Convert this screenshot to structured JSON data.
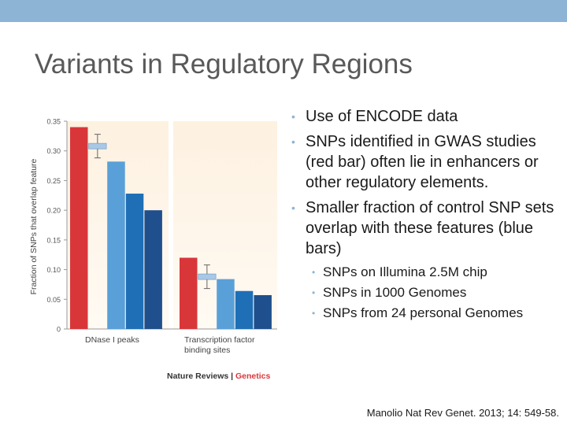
{
  "slide": {
    "title": "Variants in Regulatory Regions",
    "citation": "Manolio Nat Rev Genet. 2013; 14: 549-58."
  },
  "bullets": [
    "Use of ENCODE data",
    "SNPs identified in GWAS studies (red bar) often lie in enhancers or other regulatory elements.",
    "Smaller fraction of control SNP sets overlap with these features (blue bars)"
  ],
  "sub_bullets": [
    "SNPs on Illumina 2.5M chip",
    "SNPs in 1000 Genomes",
    "SNPs from 24 personal Genomes"
  ],
  "chart_data": {
    "type": "bar",
    "ylabel": "Fraction of SNPs that overlap feature",
    "ylim": [
      0,
      0.35
    ],
    "yticks": [
      0,
      0.05,
      0.1,
      0.15,
      0.2,
      0.25,
      0.3,
      0.35
    ],
    "ytick_labels": [
      "0",
      "0.05",
      "0.10",
      "0.15",
      "0.20",
      "0.25",
      "0.30",
      "0.35"
    ],
    "groups": [
      {
        "label": "DNase I peaks",
        "values": [
          0.34,
          0.308,
          0.282,
          0.228,
          0.2
        ]
      },
      {
        "label": "Transcription factor binding sites",
        "values": [
          0.12,
          0.088,
          0.084,
          0.064,
          0.057
        ]
      }
    ],
    "bar_colors": [
      "#d9363a",
      "#a9c8e6",
      "#5aa0d8",
      "#1f6fb6",
      "#1f4f8c"
    ],
    "credit": [
      "Nature Reviews",
      "Genetics"
    ]
  }
}
